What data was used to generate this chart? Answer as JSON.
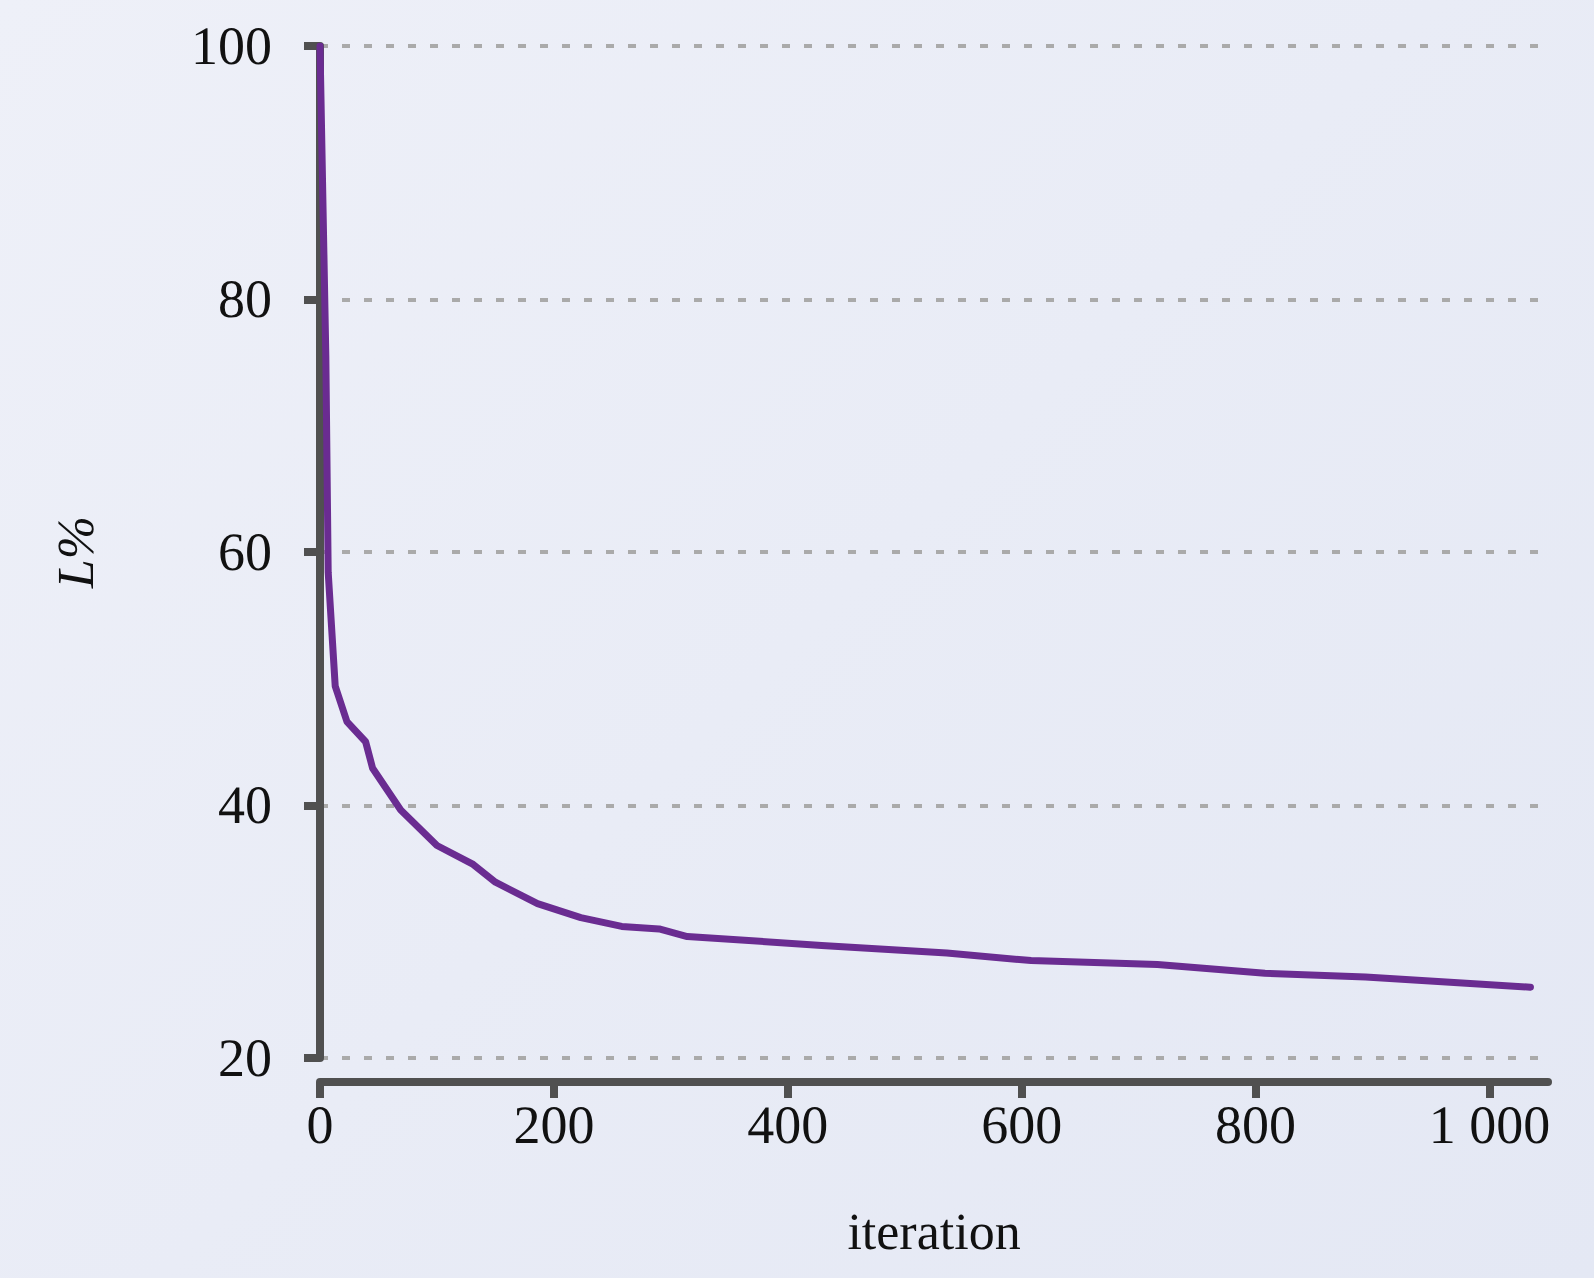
{
  "chart_data": {
    "type": "line",
    "xlabel": "iteration",
    "ylabel": "L%",
    "x": [
      0,
      5,
      7,
      13,
      23,
      39,
      45,
      69,
      100,
      131,
      150,
      186,
      223,
      258,
      290,
      314,
      429,
      536,
      608,
      716,
      808,
      894,
      980,
      1035
    ],
    "series": [
      {
        "color": "#6a2c91",
        "values": [
          100,
          75.4,
          58.4,
          49.4,
          46.6,
          45,
          42.9,
          39.6,
          36.8,
          35.3,
          33.9,
          32.2,
          31.1,
          30.4,
          30.2,
          29.6,
          28.9,
          28.3,
          27.7,
          27.4,
          26.7,
          26.4,
          25.9,
          25.6
        ]
      }
    ],
    "xlim": [
      0,
      1050
    ],
    "ylim": [
      20,
      100
    ],
    "xticks": [
      0,
      200,
      400,
      600,
      800,
      {
        "value": 1000,
        "label": "1 000"
      }
    ],
    "yticks": [
      20,
      40,
      60,
      80,
      100
    ],
    "grid": "y",
    "marker": "none"
  }
}
